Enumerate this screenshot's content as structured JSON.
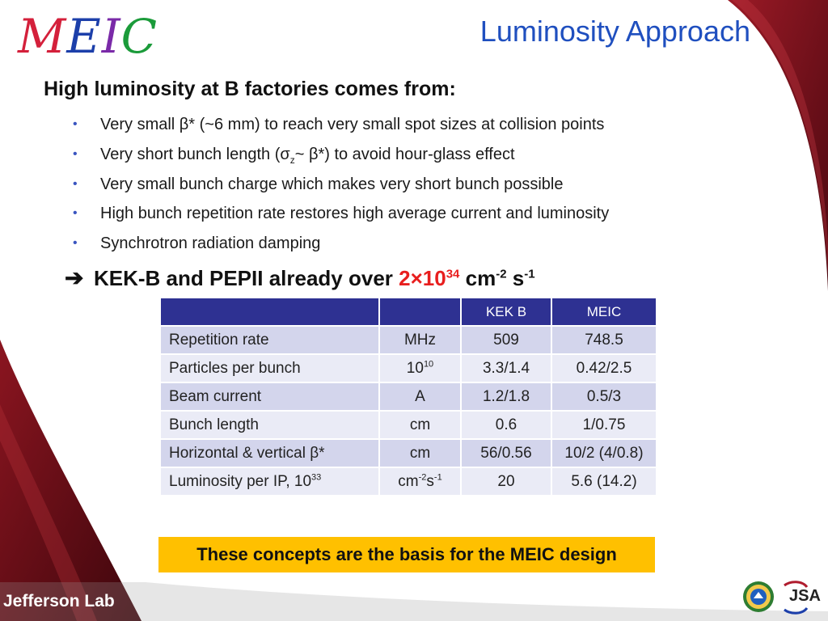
{
  "header": {
    "logo_letters": [
      "M",
      "E",
      "I",
      "C"
    ],
    "logo_colors": [
      "#d4203b",
      "#1c3faa",
      "#7a2aa8",
      "#1b9b3a"
    ],
    "title": "Luminosity Approach"
  },
  "content": {
    "heading": "High luminosity at B factories comes from:",
    "bullet_glyph": "•",
    "bullets": [
      {
        "text": "Very small β* (~6 mm) to reach very small spot sizes at collision points"
      },
      {
        "pre": "Very short bunch length (σ",
        "sub": "z",
        "post": "~ β*)  to avoid hour-glass effect"
      },
      {
        "text": "Very small bunch charge which makes very short bunch possible"
      },
      {
        "text": "High bunch repetition rate restores high average current and luminosity"
      },
      {
        "text": "Synchrotron radiation damping"
      }
    ],
    "callout": {
      "arrow": "➔",
      "text": "KEK-B and PEPII already over ",
      "value": "2×10",
      "value_exp": "34",
      "unit_cm": " cm",
      "unit_cm_exp": "-2",
      "unit_s": " s",
      "unit_s_exp": "-1"
    }
  },
  "table": {
    "headers": [
      "",
      "",
      "KEK B",
      "MEIC"
    ],
    "rows": [
      {
        "label": "Repetition rate",
        "unit": "MHz",
        "kekb": "509",
        "meic": "748.5"
      },
      {
        "label": "Particles per bunch",
        "unit": "10",
        "unit_exp": "10",
        "kekb": "3.3/1.4",
        "meic": "0.42/2.5"
      },
      {
        "label": "Beam current",
        "unit": "A",
        "kekb": "1.2/1.8",
        "meic": "0.5/3"
      },
      {
        "label": "Bunch length",
        "unit": "cm",
        "kekb": "0.6",
        "meic": "1/0.75"
      },
      {
        "label": "Horizontal & vertical β*",
        "unit": "cm",
        "kekb": "56/0.56",
        "meic": "10/2 (4/0.8)"
      },
      {
        "label": "Luminosity per IP, 10",
        "label_exp": "33",
        "unit": "cm",
        "unit_exp": "-2",
        "unit2": "s",
        "unit2_exp": "-1",
        "kekb": "20",
        "meic": "5.6 (14.2)"
      }
    ]
  },
  "note": "These concepts are the basis for the MEIC design",
  "footer": {
    "lab_name": "Jefferson Lab",
    "jsa_logo_text": "JSA"
  },
  "colors": {
    "title_blue": "#1f4fbf",
    "table_header": "#2e3192",
    "highlight_red": "#e81e1e",
    "note_bg": "#ffc000",
    "swoosh_dark": "#5a0a12",
    "swoosh_mid": "#8b1520"
  }
}
